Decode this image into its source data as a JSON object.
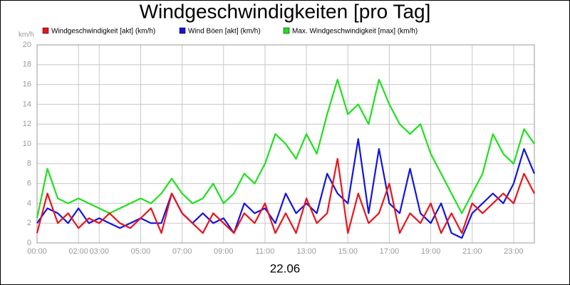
{
  "chart_data": {
    "type": "line",
    "title": "Windgeschwindigkeiten [pro Tag]",
    "y_label": "km/h",
    "x_label": "22.06",
    "x": [
      0,
      0.5,
      1,
      1.5,
      2,
      2.5,
      3,
      3.5,
      4,
      4.5,
      5,
      5.5,
      6,
      6.5,
      7,
      7.5,
      8,
      8.5,
      9,
      9.5,
      10,
      10.5,
      11,
      11.5,
      12,
      12.5,
      13,
      13.5,
      14,
      14.5,
      15,
      15.5,
      16,
      16.5,
      17,
      17.5,
      18,
      18.5,
      19,
      19.5,
      20,
      20.5,
      21,
      21.5,
      22,
      22.5,
      23,
      23.5,
      24
    ],
    "series": [
      {
        "name": "Windgeschwindigkeit [akt] (km/h)",
        "color": "#e8141c",
        "values": [
          1,
          5,
          2,
          3,
          1.5,
          2.5,
          2,
          3,
          2,
          1.5,
          2.5,
          3.5,
          1,
          5,
          3,
          2,
          1,
          3,
          2,
          1,
          3,
          2,
          4,
          1,
          3,
          1,
          4.5,
          2,
          3,
          8.5,
          1,
          5,
          2,
          3,
          6,
          1,
          3,
          2,
          4,
          1,
          3,
          1,
          4,
          3,
          4,
          5,
          4,
          7,
          5
        ]
      },
      {
        "name": "Wind Böen [akt] (km/h)",
        "color": "#1414e0",
        "values": [
          2,
          3.5,
          3,
          2,
          3.5,
          2,
          2.5,
          2,
          1.5,
          2,
          2.5,
          2,
          2,
          5,
          3,
          2,
          3,
          2,
          2.5,
          1,
          4,
          3,
          3.5,
          2,
          5,
          3,
          4,
          3,
          7,
          5,
          4,
          10.5,
          3,
          9.5,
          4,
          3,
          7.5,
          3,
          2,
          4,
          1,
          0.5,
          3,
          4,
          5,
          4,
          6,
          9.5,
          7
        ]
      },
      {
        "name": "Max. Windgeschwindigkeit [max] (km/h)",
        "color": "#1ee01e",
        "values": [
          2.5,
          7.5,
          4.5,
          4,
          4.5,
          4,
          3.5,
          3,
          3.5,
          4,
          4.5,
          4,
          5,
          6.5,
          5,
          4,
          4.5,
          6,
          4,
          5,
          7,
          6,
          8,
          11,
          10,
          8.5,
          11,
          9,
          13,
          16.5,
          13,
          14,
          12,
          16.5,
          14,
          12,
          11,
          12,
          9,
          7,
          5,
          3,
          5,
          7,
          11,
          9,
          8,
          11.5,
          10
        ]
      }
    ],
    "xlim": [
      0,
      24
    ],
    "xticks": [
      {
        "value": 0,
        "label": "00:00"
      },
      {
        "value": 2,
        "label": "02:00"
      },
      {
        "value": 3,
        "label": "03:00"
      },
      {
        "value": 5,
        "label": "05:00"
      },
      {
        "value": 7,
        "label": "07:00"
      },
      {
        "value": 9,
        "label": "09:00"
      },
      {
        "value": 11,
        "label": "11:00"
      },
      {
        "value": 13,
        "label": "13:00"
      },
      {
        "value": 15,
        "label": "15:00"
      },
      {
        "value": 17,
        "label": "17:00"
      },
      {
        "value": 19,
        "label": "19:00"
      },
      {
        "value": 21,
        "label": "21:00"
      },
      {
        "value": 23,
        "label": "23:00"
      }
    ],
    "ylim": [
      0,
      20
    ],
    "yticks": [
      0,
      2,
      4,
      6,
      8,
      10,
      12,
      14,
      16,
      18,
      20
    ],
    "grid": true
  }
}
